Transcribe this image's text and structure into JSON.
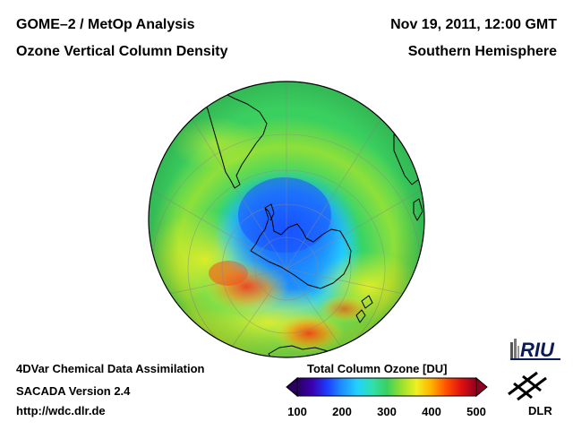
{
  "header": {
    "title_line1": "GOME–2 / MetOp Analysis",
    "title_line2": "Ozone Vertical Column Density",
    "date": "Nov 19, 2011, 12:00 GMT",
    "hemisphere": "Southern Hemisphere"
  },
  "footer": {
    "line1": "4DVar Chemical Data Assimilation",
    "line2": "SACADA Version 2.4",
    "line3": "http://wdc.dlr.de"
  },
  "colorbar": {
    "title": "Total Column Ozone [DU]",
    "min": 100,
    "max": 500,
    "ticks": [
      "100",
      "200",
      "300",
      "400",
      "500"
    ],
    "colors": [
      "#2a0060",
      "#3b00b0",
      "#1b3cff",
      "#1e90ff",
      "#22d0ff",
      "#30e0b0",
      "#3ad060",
      "#9ae030",
      "#f0f020",
      "#ffb000",
      "#ff5000",
      "#e01010",
      "#900020"
    ]
  },
  "logos": {
    "riu_text": "RIU",
    "dlr_text": "DLR"
  },
  "map": {
    "projection": "orthographic, south pole centered",
    "ozone_hole_value_du": 200,
    "background_value_du": 300,
    "high_ring_value_du": 400
  },
  "colors": {
    "background": "#ffffff",
    "text": "#000000",
    "ocean_base": "#36d468",
    "coastline": "#000000"
  }
}
